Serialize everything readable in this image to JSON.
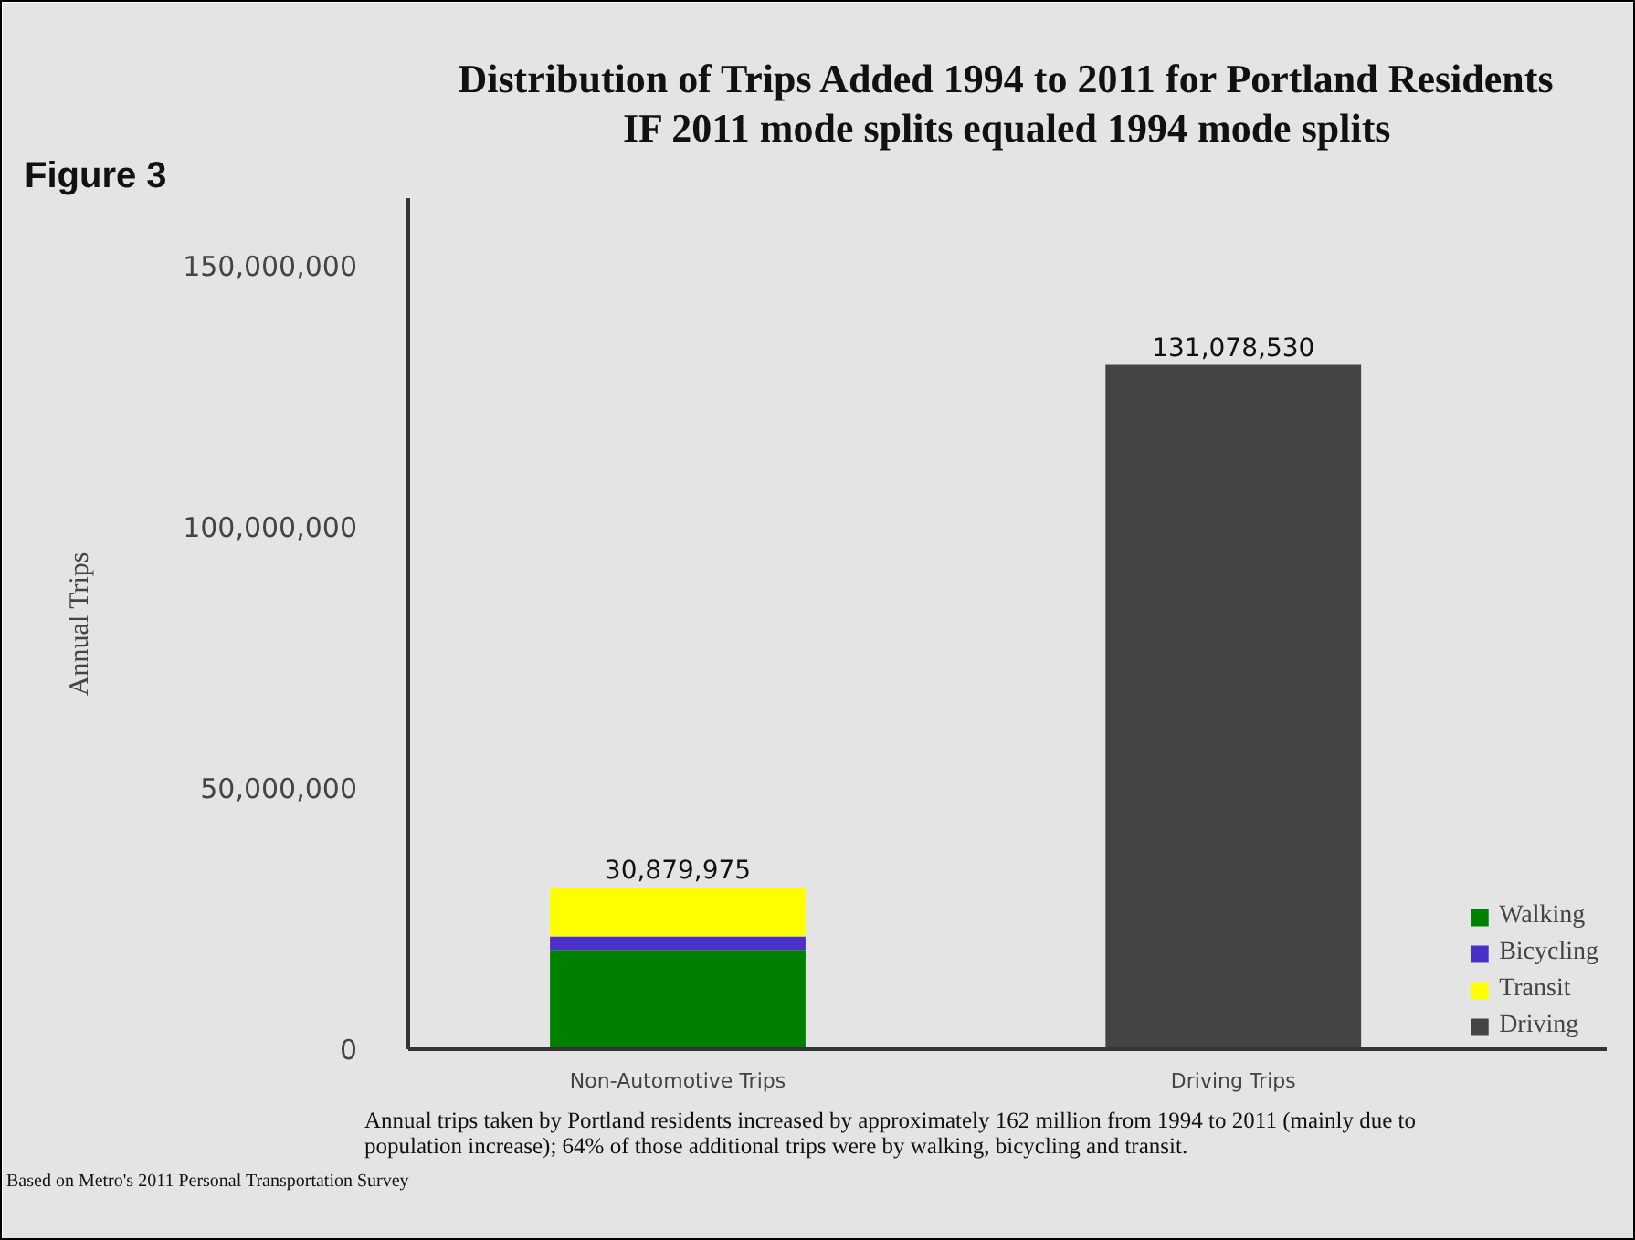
{
  "chart_data": {
    "type": "bar",
    "stacked": true,
    "title": "Distribution of Trips Added 1994 to 2011 for Portland Residents",
    "subtitle": "IF 2011 mode splits equaled 1994 mode splits",
    "ylabel": "Annual Trips",
    "categories": [
      "Non-Automotive Trips",
      "Driving Trips"
    ],
    "series": [
      {
        "name": "Walking",
        "color": "#008000",
        "values": [
          19000000,
          null
        ]
      },
      {
        "name": "Bicycling",
        "color": "#4b30c8",
        "values": [
          2600000,
          null
        ]
      },
      {
        "name": "Transit",
        "color": "#ffff00",
        "values": [
          9279975,
          null
        ]
      },
      {
        "name": "Driving",
        "color": "#444444",
        "values": [
          null,
          131078530
        ]
      }
    ],
    "totals": [
      "30,879,975",
      "131,078,530"
    ],
    "ylim": [
      0,
      163000000
    ],
    "yticks": [
      {
        "value": 0,
        "label": "0"
      },
      {
        "value": 50000000,
        "label": "50,000,000"
      },
      {
        "value": 100000000,
        "label": "100,000,000"
      },
      {
        "value": 150000000,
        "label": "150,000,000"
      }
    ],
    "grid": false,
    "legend": "bottom right",
    "annotations": [
      "Figure 3",
      "Annual trips taken by Portland residents increased by approximately 162 million from 1994 to 2011 (mainly due to population increase); 64% of those additional trips were by walking, bicycling and transit.",
      "Based on Metro's 2011 Personal Transportation Survey"
    ]
  }
}
